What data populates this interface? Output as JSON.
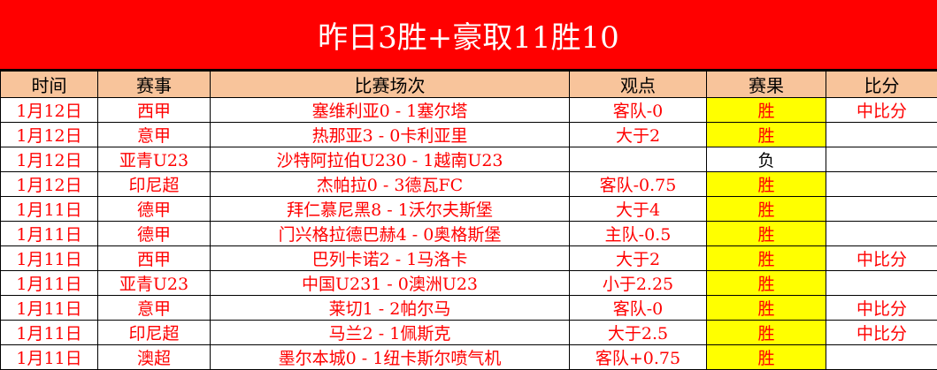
{
  "title": "昨日3胜+豪取11胜10",
  "headers": [
    "时间",
    "赛事",
    "比赛场次",
    "观点",
    "赛果",
    "比分"
  ],
  "colors": {
    "title_bg": "#ff0000",
    "header_bg": "#f8c49b",
    "win_bg": "#ffff00",
    "text": "#ff0000"
  },
  "rows": [
    {
      "time": "1月12日",
      "league": "西甲",
      "match": "塞维利亚0 - 1塞尔塔",
      "view": "客队-0",
      "result": "胜",
      "score": "中比分"
    },
    {
      "time": "1月12日",
      "league": "意甲",
      "match": "热那亚3 - 0卡利亚里",
      "view": "大于2",
      "result": "胜",
      "score": ""
    },
    {
      "time": "1月12日",
      "league": "亚青U23",
      "match": "沙特阿拉伯U230 - 1越南U23",
      "view": "",
      "result": "负",
      "score": ""
    },
    {
      "time": "1月12日",
      "league": "印尼超",
      "match": "杰帕拉0 - 3德瓦FC",
      "view": "客队-0.75",
      "result": "胜",
      "score": ""
    },
    {
      "time": "1月11日",
      "league": "德甲",
      "match": "拜仁慕尼黑8 - 1沃尔夫斯堡",
      "view": "大于4",
      "result": "胜",
      "score": ""
    },
    {
      "time": "1月11日",
      "league": "德甲",
      "match": "门兴格拉德巴赫4 - 0奥格斯堡",
      "view": "主队-0.5",
      "result": "胜",
      "score": ""
    },
    {
      "time": "1月11日",
      "league": "西甲",
      "match": "巴列卡诺2 - 1马洛卡",
      "view": "大于2",
      "result": "胜",
      "score": "中比分"
    },
    {
      "time": "1月11日",
      "league": "亚青U23",
      "match": "中国U231 - 0澳洲U23",
      "view": "小于2.25",
      "result": "胜",
      "score": ""
    },
    {
      "time": "1月11日",
      "league": "意甲",
      "match": "莱切1 - 2帕尔马",
      "view": "客队-0",
      "result": "胜",
      "score": "中比分"
    },
    {
      "time": "1月11日",
      "league": "印尼超",
      "match": "马兰2 - 1佩斯克",
      "view": "大于2.5",
      "result": "胜",
      "score": "中比分"
    },
    {
      "time": "1月11日",
      "league": "澳超",
      "match": "墨尔本城0 - 1纽卡斯尔喷气机",
      "view": "客队+0.75",
      "result": "胜",
      "score": ""
    }
  ]
}
